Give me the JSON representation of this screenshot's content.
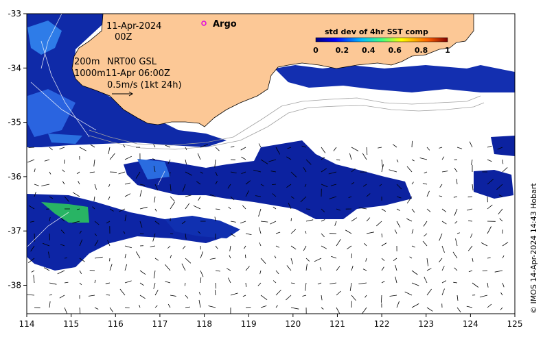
{
  "map": {
    "date_line": "11-Apr-2024",
    "time_line": "00Z",
    "depth_line_1": "200m",
    "product_line": "NRT00 GSL",
    "depth_line_2": "1000m",
    "analysis_time": "11-Apr 06:00Z",
    "arrow_scale": "0.5m/s (1kt 24h)",
    "argo_label": "Argo",
    "legend_title": "std dev of 4hr SST comp",
    "legend_ticks": [
      "0",
      "0.2",
      "0.4",
      "0.6",
      "0.8",
      "1"
    ],
    "credit": "© IMOS 14-Apr-2024 14:43 Hobart",
    "x_ticks": [
      "114",
      "115",
      "116",
      "117",
      "118",
      "119",
      "120",
      "121",
      "122",
      "123",
      "124",
      "125"
    ],
    "y_ticks": [
      "-33",
      "-34",
      "-35",
      "-36",
      "-37",
      "-38"
    ],
    "colors": {
      "land": "#fcc896",
      "sst_low": "#0a1e96",
      "sst_mid": "#1e50d2",
      "sst_high": "#28b464"
    }
  }
}
